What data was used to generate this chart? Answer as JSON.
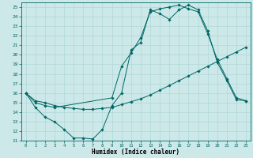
{
  "xlabel": "Humidex (Indice chaleur)",
  "xlim": [
    -0.5,
    23.5
  ],
  "ylim": [
    11,
    25.5
  ],
  "yticks": [
    11,
    12,
    13,
    14,
    15,
    16,
    17,
    18,
    19,
    20,
    21,
    22,
    23,
    24,
    25
  ],
  "xticks": [
    0,
    1,
    2,
    3,
    4,
    5,
    6,
    7,
    8,
    9,
    10,
    11,
    12,
    13,
    14,
    15,
    16,
    17,
    18,
    19,
    20,
    21,
    22,
    23
  ],
  "bg_color": "#cce8e8",
  "line_color": "#006666",
  "grid_color": "#b0d8d8",
  "line1": {
    "x": [
      0,
      1,
      2,
      3,
      4,
      5,
      6,
      7,
      8,
      9,
      10,
      11,
      12,
      13,
      14,
      15,
      16,
      17,
      18,
      19,
      20,
      21,
      22,
      23
    ],
    "y": [
      16,
      14.5,
      13.5,
      13,
      12.2,
      11.3,
      11.3,
      11.2,
      12.2,
      14.7,
      16.0,
      20.5,
      21.3,
      24.7,
      24.3,
      23.7,
      24.7,
      25.2,
      24.7,
      22.5,
      19.2,
      17.3,
      15.3,
      15.2
    ]
  },
  "line2": {
    "x": [
      0,
      1,
      2,
      3,
      4,
      5,
      6,
      7,
      8,
      9,
      10,
      11,
      12,
      13,
      14,
      15,
      16,
      17,
      18,
      19,
      20,
      21,
      22,
      23
    ],
    "y": [
      16,
      15.2,
      15.0,
      14.7,
      14.5,
      14.4,
      14.3,
      14.3,
      14.4,
      14.5,
      14.8,
      15.1,
      15.4,
      15.8,
      16.3,
      16.8,
      17.3,
      17.8,
      18.3,
      18.8,
      19.3,
      19.8,
      20.3,
      20.8
    ]
  },
  "line3": {
    "x": [
      0,
      1,
      2,
      3,
      9,
      10,
      11,
      12,
      13,
      14,
      15,
      16,
      17,
      18,
      19,
      20,
      21,
      22,
      23
    ],
    "y": [
      16,
      15.0,
      14.7,
      14.5,
      15.5,
      18.8,
      20.2,
      21.8,
      24.5,
      24.8,
      25.0,
      25.2,
      24.8,
      24.5,
      22.2,
      19.5,
      17.5,
      15.5,
      15.2
    ]
  }
}
